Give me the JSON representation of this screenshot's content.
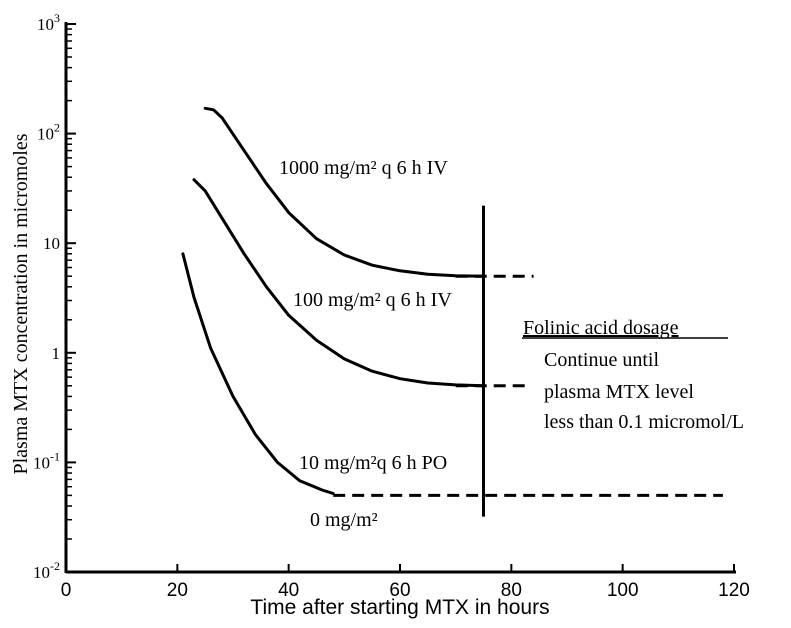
{
  "chart_data": {
    "type": "line",
    "xlabel": "Time after starting  MTX in hours",
    "ylabel": "Plasma MTX concentration in micromoles",
    "xlim": [
      0,
      120
    ],
    "ylim": [
      0.01,
      1000
    ],
    "y_scale": "log",
    "x_ticks": [
      0,
      20,
      40,
      60,
      80,
      100,
      120
    ],
    "x_tick_labels": [
      "0",
      "20",
      "40",
      "60",
      "80",
      "100",
      "120"
    ],
    "y_ticks": [
      0.01,
      0.1,
      1,
      10,
      100,
      1000
    ],
    "y_tick_labels": [
      {
        "base": "10",
        "exp": "-2"
      },
      {
        "base": "10",
        "exp": "-1"
      },
      {
        "base": "1",
        "exp": ""
      },
      {
        "base": "10",
        "exp": ""
      },
      {
        "base": "10",
        "exp": "2"
      },
      {
        "base": "10",
        "exp": "3"
      }
    ],
    "grid": false,
    "series": [
      {
        "name": "1000 mg/m² q 6 h  IV",
        "solid": {
          "x": [
            25,
            26.5,
            28,
            32,
            36,
            40,
            45,
            50,
            55,
            60,
            65,
            70,
            75
          ],
          "y": [
            170,
            165,
            140,
            70,
            35,
            19,
            11,
            7.8,
            6.3,
            5.6,
            5.2,
            5.05,
            5.0
          ]
        },
        "dashed": {
          "x": [
            70,
            84
          ],
          "y": [
            5.0,
            5.0
          ]
        }
      },
      {
        "name": "100 mg/m² q 6 h  IV",
        "solid": {
          "x": [
            23,
            25,
            28,
            32,
            36,
            40,
            45,
            50,
            55,
            60,
            65,
            70,
            75
          ],
          "y": [
            38,
            30,
            17,
            8,
            4,
            2.2,
            1.3,
            0.88,
            0.68,
            0.58,
            0.53,
            0.51,
            0.5
          ]
        },
        "dashed": {
          "x": [
            70,
            83
          ],
          "y": [
            0.5,
            0.5
          ]
        }
      },
      {
        "name": "10 mg/m²q 6 h PO",
        "solid": {
          "x": [
            21,
            23,
            26,
            30,
            34,
            38,
            42,
            46,
            48
          ],
          "y": [
            8,
            3.2,
            1.1,
            0.4,
            0.18,
            0.1,
            0.068,
            0.056,
            0.052
          ]
        },
        "dashed": {
          "x": [
            48,
            118
          ],
          "y": [
            0.05,
            0.05
          ]
        }
      }
    ],
    "bottom_label": "0 mg/m²",
    "marker_line": {
      "x": 75,
      "y_range": [
        0.032,
        22
      ]
    },
    "annotation": {
      "heading": "Folinic acid dosage",
      "lines": [
        "Continue until",
        "plasma MTX level",
        "less than 0.1 micromol/L"
      ]
    }
  }
}
